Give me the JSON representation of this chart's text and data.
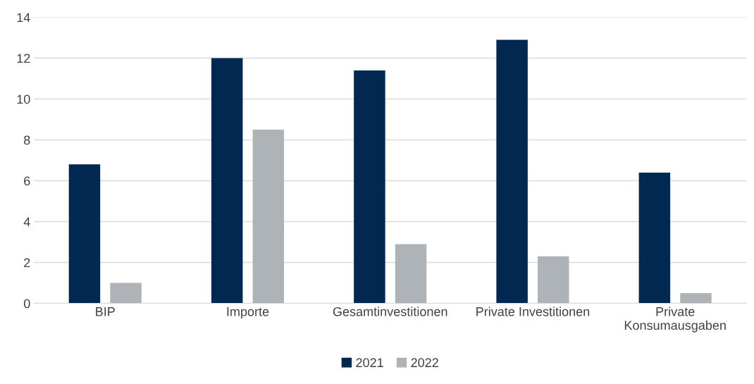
{
  "chart_data": {
    "type": "bar",
    "categories": [
      "BIP",
      "Importe",
      "Gesamtinvestitionen",
      "Private Investitionen",
      "Private\nKonsumausgaben"
    ],
    "series": [
      {
        "name": "2021",
        "color": "#002850",
        "values": [
          6.8,
          12.0,
          11.4,
          12.9,
          6.4
        ]
      },
      {
        "name": "2022",
        "color": "#aeb3b8",
        "values": [
          1.0,
          8.5,
          2.9,
          2.3,
          0.5
        ]
      }
    ],
    "ylim": [
      0,
      14
    ],
    "yticks": [
      0,
      2,
      4,
      6,
      8,
      10,
      12,
      14
    ],
    "grid": "y",
    "legend": "bottom"
  }
}
